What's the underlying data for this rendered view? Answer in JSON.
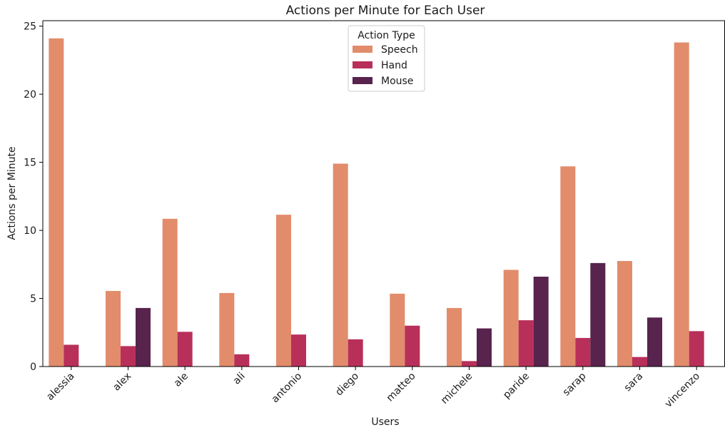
{
  "chart_data": {
    "type": "bar",
    "title": "Actions per Minute for Each User",
    "xlabel": "Users",
    "ylabel": "Actions per Minute",
    "categories": [
      "alessia",
      "alex",
      "ale",
      "ali",
      "antonio",
      "diego",
      "matteo",
      "michele",
      "paride",
      "sarap",
      "sara",
      "vincenzo"
    ],
    "series": [
      {
        "name": "Speech",
        "color": "#e28c6b",
        "values": [
          24.1,
          5.55,
          10.85,
          5.4,
          11.15,
          14.9,
          5.35,
          4.3,
          7.1,
          14.7,
          7.75,
          23.8
        ]
      },
      {
        "name": "Hand",
        "color": "#b8305a",
        "values": [
          1.6,
          1.5,
          2.55,
          0.9,
          2.35,
          2.0,
          3.0,
          0.4,
          3.4,
          2.1,
          0.7,
          2.6
        ]
      },
      {
        "name": "Mouse",
        "color": "#58234d",
        "values": [
          null,
          4.3,
          null,
          null,
          null,
          null,
          null,
          2.8,
          6.6,
          7.6,
          3.6,
          null
        ]
      }
    ],
    "ylim": [
      0,
      25.4
    ],
    "yticks": [
      0,
      5,
      10,
      15,
      20,
      25
    ],
    "legend": {
      "title": "Action Type",
      "position": "upper-center"
    },
    "grid": false
  }
}
